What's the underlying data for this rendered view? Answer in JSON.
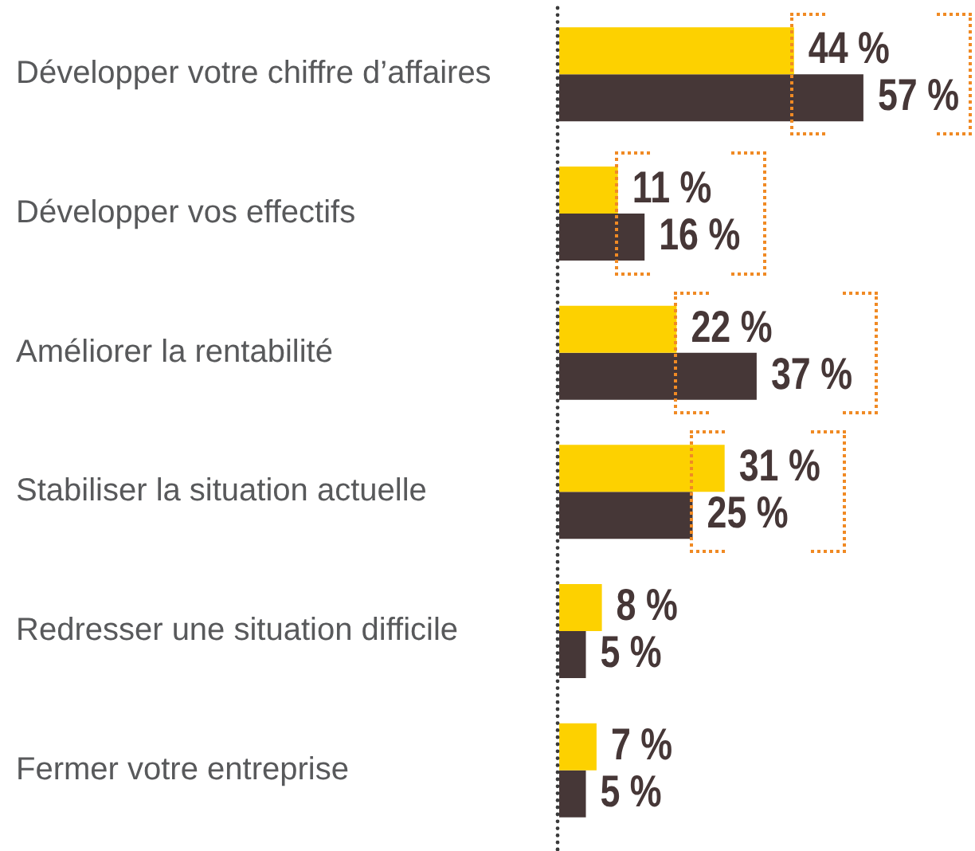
{
  "chart_data": {
    "type": "bar",
    "orientation": "horizontal",
    "categories": [
      "Développer votre chiffre d’affaires",
      "Développer vos effectifs",
      "Améliorer la rentabilité",
      "Stabiliser la situation actuelle",
      "Redresser une situation difficile",
      "Fermer votre entreprise"
    ],
    "series": [
      {
        "color": "#fdd100",
        "values": [
          44,
          11,
          22,
          31,
          8,
          7
        ],
        "value_labels": [
          "44 %",
          "11 %",
          "22 %",
          "31 %",
          "8 %",
          "7 %"
        ]
      },
      {
        "color": "#463737",
        "values": [
          57,
          16,
          37,
          25,
          5,
          5
        ],
        "value_labels": [
          "57 %",
          "16 %",
          "37 %",
          "25 %",
          "5 %",
          "5 %"
        ]
      }
    ],
    "tick_labels": "y"
  }
}
